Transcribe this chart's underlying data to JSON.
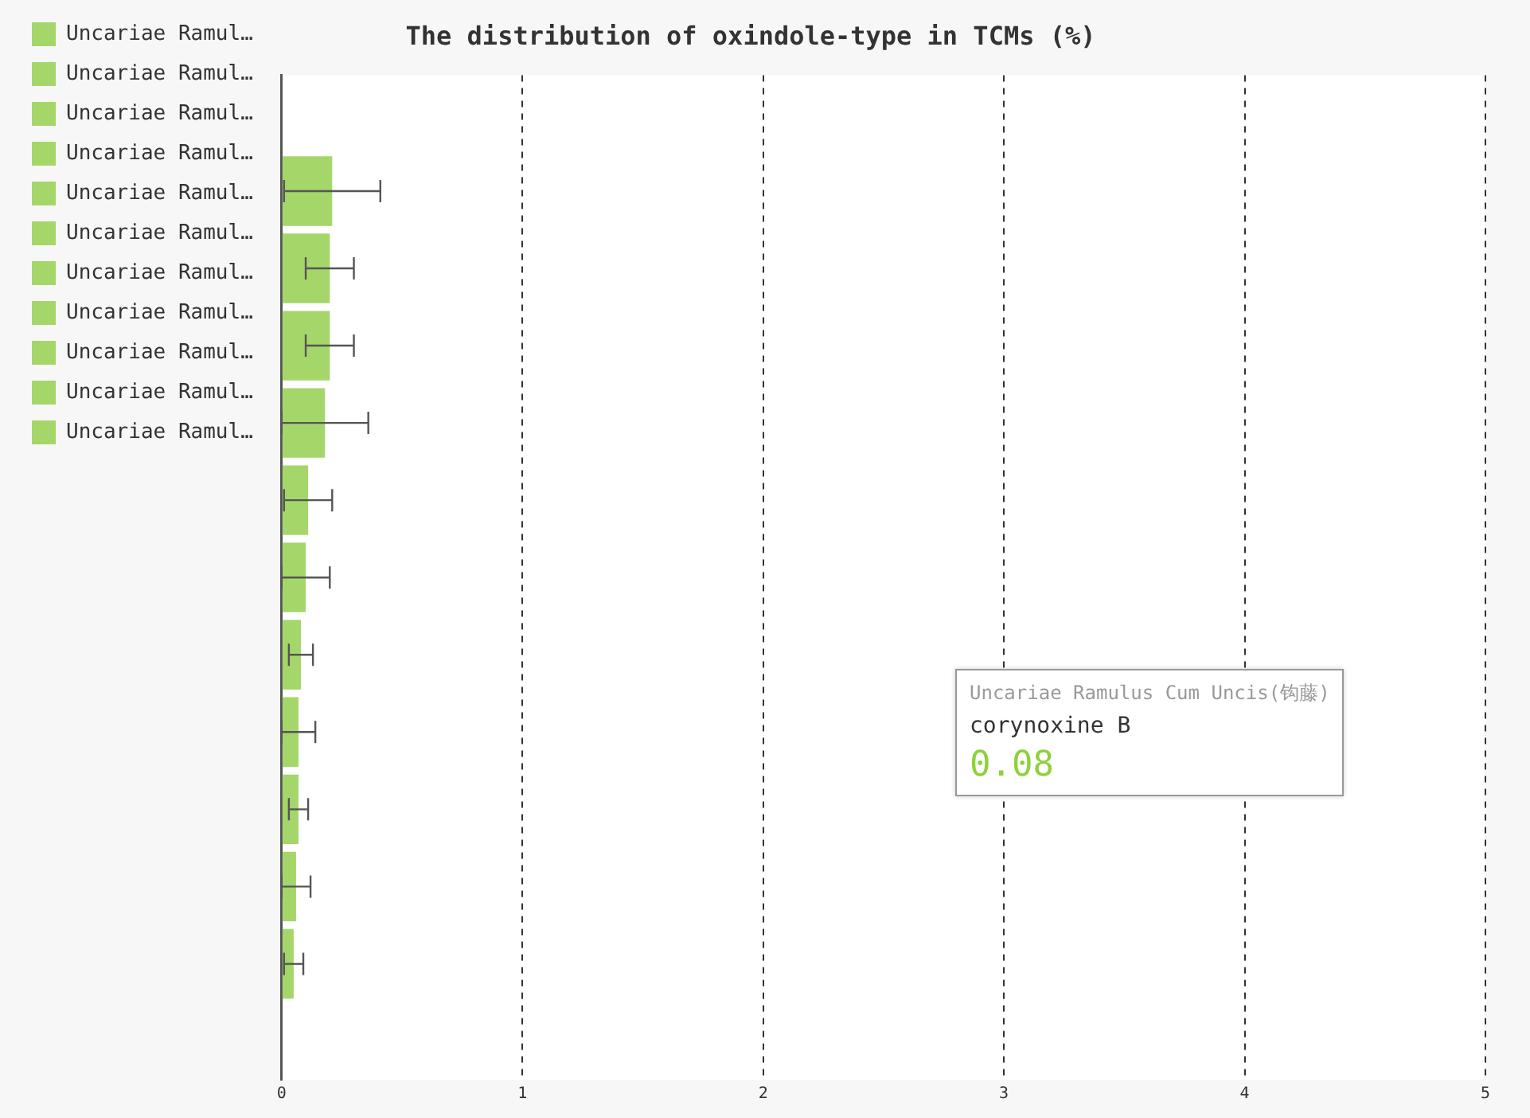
{
  "chart_data": {
    "type": "bar",
    "orientation": "horizontal",
    "title": "The distribution of oxindole-type in TCMs (%)",
    "categories": [
      null,
      null,
      null,
      null,
      null,
      null,
      null,
      null,
      null,
      null,
      null,
      null,
      null
    ],
    "series": [
      {
        "name": "Uncariae Ramul…",
        "color": "#a5d66a",
        "values": [
          null,
          0.21,
          null,
          null,
          null,
          null,
          null,
          null,
          null,
          null,
          null,
          null,
          null
        ],
        "errors": [
          null,
          0.2,
          null,
          null,
          null,
          null,
          null,
          null,
          null,
          null,
          null,
          null,
          null
        ]
      },
      {
        "name": "Uncariae Ramul…",
        "color": "#a5d66a",
        "values": [
          null,
          null,
          0.2,
          null,
          null,
          null,
          null,
          null,
          null,
          null,
          null,
          null,
          null
        ],
        "errors": [
          null,
          null,
          0.1,
          null,
          null,
          null,
          null,
          null,
          null,
          null,
          null,
          null,
          null
        ]
      },
      {
        "name": "Uncariae Ramul…",
        "color": "#a5d66a",
        "values": [
          null,
          null,
          null,
          0.2,
          null,
          null,
          null,
          null,
          null,
          null,
          null,
          null,
          null
        ],
        "errors": [
          null,
          null,
          null,
          0.1,
          null,
          null,
          null,
          null,
          null,
          null,
          null,
          null,
          null
        ]
      },
      {
        "name": "Uncariae Ramul…",
        "color": "#a5d66a",
        "values": [
          null,
          null,
          null,
          null,
          0.18,
          null,
          null,
          null,
          null,
          null,
          null,
          null,
          null
        ],
        "errors": [
          null,
          null,
          null,
          null,
          0.18,
          null,
          null,
          null,
          null,
          null,
          null,
          null,
          null
        ]
      },
      {
        "name": "Uncariae Ramul…",
        "color": "#a5d66a",
        "values": [
          null,
          null,
          null,
          null,
          null,
          0.11,
          null,
          null,
          null,
          null,
          null,
          null,
          null
        ],
        "errors": [
          null,
          null,
          null,
          null,
          null,
          0.1,
          null,
          null,
          null,
          null,
          null,
          null,
          null
        ]
      },
      {
        "name": "Uncariae Ramul…",
        "color": "#a5d66a",
        "values": [
          null,
          null,
          null,
          null,
          null,
          null,
          0.1,
          null,
          null,
          null,
          null,
          null,
          null
        ],
        "errors": [
          null,
          null,
          null,
          null,
          null,
          null,
          0.1,
          null,
          null,
          null,
          null,
          null,
          null
        ]
      },
      {
        "name": "Uncariae Ramul…",
        "color": "#a5d66a",
        "values": [
          null,
          null,
          null,
          null,
          null,
          null,
          null,
          0.08,
          null,
          null,
          null,
          null,
          null
        ],
        "errors": [
          null,
          null,
          null,
          null,
          null,
          null,
          null,
          0.05,
          null,
          null,
          null,
          null,
          null
        ]
      },
      {
        "name": "Uncariae Ramul…",
        "color": "#a5d66a",
        "values": [
          null,
          null,
          null,
          null,
          null,
          null,
          null,
          null,
          0.07,
          null,
          null,
          null,
          null
        ],
        "errors": [
          null,
          null,
          null,
          null,
          null,
          null,
          null,
          null,
          0.07,
          null,
          null,
          null,
          null
        ]
      },
      {
        "name": "Uncariae Ramul…",
        "color": "#a5d66a",
        "values": [
          null,
          null,
          null,
          null,
          null,
          null,
          null,
          null,
          null,
          0.07,
          null,
          null,
          null
        ],
        "errors": [
          null,
          null,
          null,
          null,
          null,
          null,
          null,
          null,
          null,
          0.04,
          null,
          null,
          null
        ]
      },
      {
        "name": "Uncariae Ramul…",
        "color": "#a5d66a",
        "values": [
          null,
          null,
          null,
          null,
          null,
          null,
          null,
          null,
          null,
          null,
          0.06,
          null,
          null
        ],
        "errors": [
          null,
          null,
          null,
          null,
          null,
          null,
          null,
          null,
          null,
          null,
          0.06,
          null,
          null
        ]
      },
      {
        "name": "Uncariae Ramul…",
        "color": "#a5d66a",
        "values": [
          null,
          null,
          null,
          null,
          null,
          null,
          null,
          null,
          null,
          null,
          null,
          0.05,
          null
        ],
        "errors": [
          null,
          null,
          null,
          null,
          null,
          null,
          null,
          null,
          null,
          null,
          null,
          0.04,
          null
        ]
      }
    ],
    "xlim": [
      0,
      5
    ],
    "xticks": [
      0,
      1,
      2,
      3,
      4,
      5
    ],
    "grid": "x",
    "legend": "left",
    "annotations": [
      "Uncariae Ramulus Cum Uncis(钩藤)",
      "corynoxine B",
      "0.08"
    ]
  }
}
